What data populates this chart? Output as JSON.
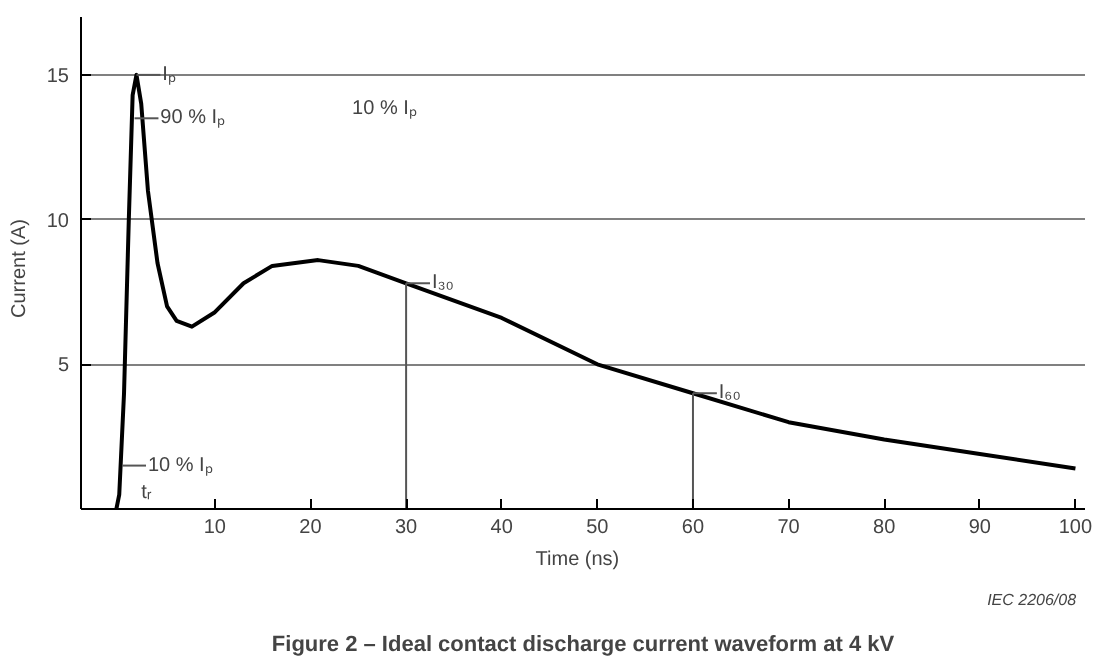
{
  "chart_data": {
    "type": "line",
    "title": "Figure 2 – Ideal contact discharge current waveform at 4 kV",
    "xlabel": "Time   (ns)",
    "ylabel": "Current   (A)",
    "x": [
      -0.3,
      0,
      0.5,
      1,
      1.4,
      1.8,
      2.3,
      3,
      4,
      5,
      6,
      7.6,
      10,
      13,
      16,
      20.8,
      25,
      30,
      40,
      50,
      60,
      70,
      80,
      90,
      100
    ],
    "series": [
      {
        "color": "#000000",
        "values": [
          0,
          0.5,
          4,
          10,
          14.3,
          15,
          14,
          11,
          8.5,
          7,
          6.5,
          6.3,
          6.8,
          7.8,
          8.4,
          8.6,
          8.4,
          7.8,
          6.6,
          5.0,
          4.0,
          3.0,
          2.4,
          1.9,
          1.4
        ]
      }
    ],
    "xlim": [
      -4,
      101
    ],
    "ylim": [
      0,
      17
    ],
    "xticks": [
      10,
      20,
      30,
      40,
      50,
      60,
      70,
      80,
      90,
      100
    ],
    "yticks": [
      5,
      10,
      15
    ],
    "grid": "y",
    "marker": "none",
    "line_style": "solid",
    "annotations": [
      {
        "text": "Iₚ",
        "x": 1.8,
        "y": 15
      },
      {
        "text": "90 % Iₚ",
        "x": 1.6,
        "y": 13.5
      },
      {
        "text": "10 % Iₚ",
        "x": 0.3,
        "y": 1.5
      },
      {
        "text": "I₃₀",
        "x": 30,
        "y": 7.8
      },
      {
        "text": "I₆₀",
        "x": 60,
        "y": 4.0
      },
      "10 % Iₚ",
      "tᵣ",
      "IEC   2206/08"
    ]
  }
}
